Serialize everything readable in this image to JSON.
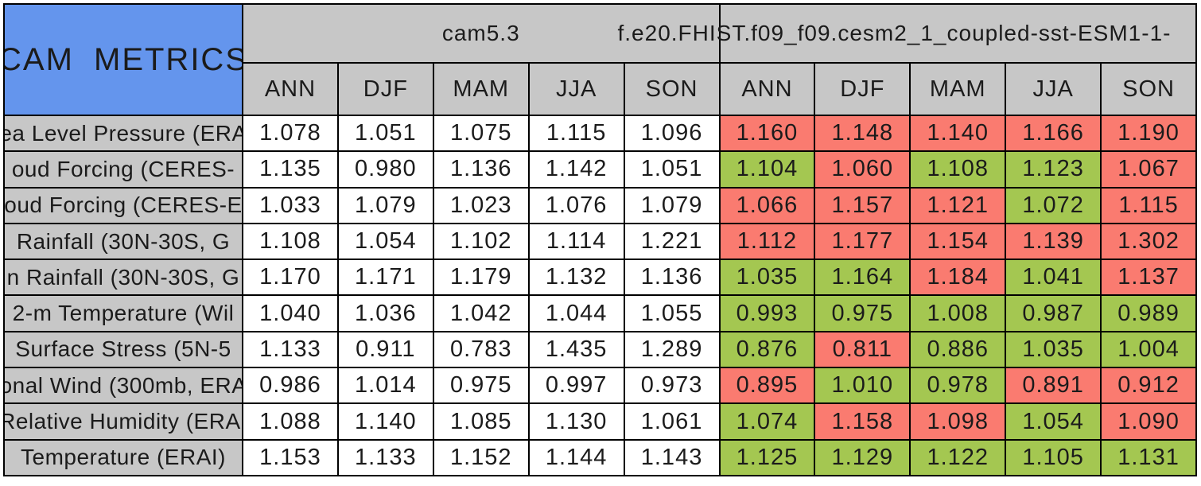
{
  "chart_data": {
    "type": "table",
    "title": "CAM METRICS",
    "column_groups": {
      "baseline": "cam5.3",
      "case": "f.e20.FHIST.f09_f09.cesm2_1_coupled-sst-ESM1-1-"
    },
    "seasons": [
      "ANN",
      "DJF",
      "MAM",
      "JJA",
      "SON"
    ],
    "colors": {
      "title_blue": "#6495ed",
      "header_gray": "#c7c7c7",
      "white": "#ffffff",
      "red": "#fa7b70",
      "green": "#a4c751"
    },
    "rows": [
      {
        "label": "ea Level Pressure (ERA",
        "cam53": [
          "1.078",
          "1.051",
          "1.075",
          "1.115",
          "1.096"
        ],
        "case": [
          {
            "v": "1.160",
            "c": "red"
          },
          {
            "v": "1.148",
            "c": "red"
          },
          {
            "v": "1.140",
            "c": "red"
          },
          {
            "v": "1.166",
            "c": "red"
          },
          {
            "v": "1.190",
            "c": "red"
          }
        ]
      },
      {
        "label": "oud Forcing (CERES-",
        "cam53": [
          "1.135",
          "0.980",
          "1.136",
          "1.142",
          "1.051"
        ],
        "case": [
          {
            "v": "1.104",
            "c": "green"
          },
          {
            "v": "1.060",
            "c": "red"
          },
          {
            "v": "1.108",
            "c": "green"
          },
          {
            "v": "1.123",
            "c": "green"
          },
          {
            "v": "1.067",
            "c": "red"
          }
        ]
      },
      {
        "label": "oud Forcing (CERES-E",
        "cam53": [
          "1.033",
          "1.079",
          "1.023",
          "1.076",
          "1.079"
        ],
        "case": [
          {
            "v": "1.066",
            "c": "red"
          },
          {
            "v": "1.157",
            "c": "red"
          },
          {
            "v": "1.121",
            "c": "red"
          },
          {
            "v": "1.072",
            "c": "green"
          },
          {
            "v": "1.115",
            "c": "red"
          }
        ]
      },
      {
        "label": "Rainfall (30N-30S, G",
        "cam53": [
          "1.108",
          "1.054",
          "1.102",
          "1.114",
          "1.221"
        ],
        "case": [
          {
            "v": "1.112",
            "c": "red"
          },
          {
            "v": "1.177",
            "c": "red"
          },
          {
            "v": "1.154",
            "c": "red"
          },
          {
            "v": "1.139",
            "c": "red"
          },
          {
            "v": "1.302",
            "c": "red"
          }
        ]
      },
      {
        "label": "n Rainfall (30N-30S, G",
        "cam53": [
          "1.170",
          "1.171",
          "1.179",
          "1.132",
          "1.136"
        ],
        "case": [
          {
            "v": "1.035",
            "c": "green"
          },
          {
            "v": "1.164",
            "c": "green"
          },
          {
            "v": "1.184",
            "c": "red"
          },
          {
            "v": "1.041",
            "c": "green"
          },
          {
            "v": "1.137",
            "c": "red"
          }
        ]
      },
      {
        "label": "2-m Temperature (Wil",
        "cam53": [
          "1.040",
          "1.036",
          "1.042",
          "1.044",
          "1.055"
        ],
        "case": [
          {
            "v": "0.993",
            "c": "green"
          },
          {
            "v": "0.975",
            "c": "green"
          },
          {
            "v": "1.008",
            "c": "green"
          },
          {
            "v": "0.987",
            "c": "green"
          },
          {
            "v": "0.989",
            "c": "green"
          }
        ]
      },
      {
        "label": "Surface Stress (5N-5",
        "cam53": [
          "1.133",
          "0.911",
          "0.783",
          "1.435",
          "1.289"
        ],
        "case": [
          {
            "v": "0.876",
            "c": "green"
          },
          {
            "v": "0.811",
            "c": "red"
          },
          {
            "v": "0.886",
            "c": "green"
          },
          {
            "v": "1.035",
            "c": "green"
          },
          {
            "v": "1.004",
            "c": "green"
          }
        ]
      },
      {
        "label": "onal Wind (300mb, ERA",
        "cam53": [
          "0.986",
          "1.014",
          "0.975",
          "0.997",
          "0.973"
        ],
        "case": [
          {
            "v": "0.895",
            "c": "red"
          },
          {
            "v": "1.010",
            "c": "green"
          },
          {
            "v": "0.978",
            "c": "green"
          },
          {
            "v": "0.891",
            "c": "red"
          },
          {
            "v": "0.912",
            "c": "red"
          }
        ]
      },
      {
        "label": "Relative Humidity (ERAI",
        "cam53": [
          "1.088",
          "1.140",
          "1.085",
          "1.130",
          "1.061"
        ],
        "case": [
          {
            "v": "1.074",
            "c": "green"
          },
          {
            "v": "1.158",
            "c": "red"
          },
          {
            "v": "1.098",
            "c": "red"
          },
          {
            "v": "1.054",
            "c": "green"
          },
          {
            "v": "1.090",
            "c": "red"
          }
        ]
      },
      {
        "label": "Temperature (ERAI)",
        "cam53": [
          "1.153",
          "1.133",
          "1.152",
          "1.144",
          "1.143"
        ],
        "case": [
          {
            "v": "1.125",
            "c": "green"
          },
          {
            "v": "1.129",
            "c": "green"
          },
          {
            "v": "1.122",
            "c": "green"
          },
          {
            "v": "1.105",
            "c": "green"
          },
          {
            "v": "1.131",
            "c": "green"
          }
        ]
      }
    ]
  }
}
